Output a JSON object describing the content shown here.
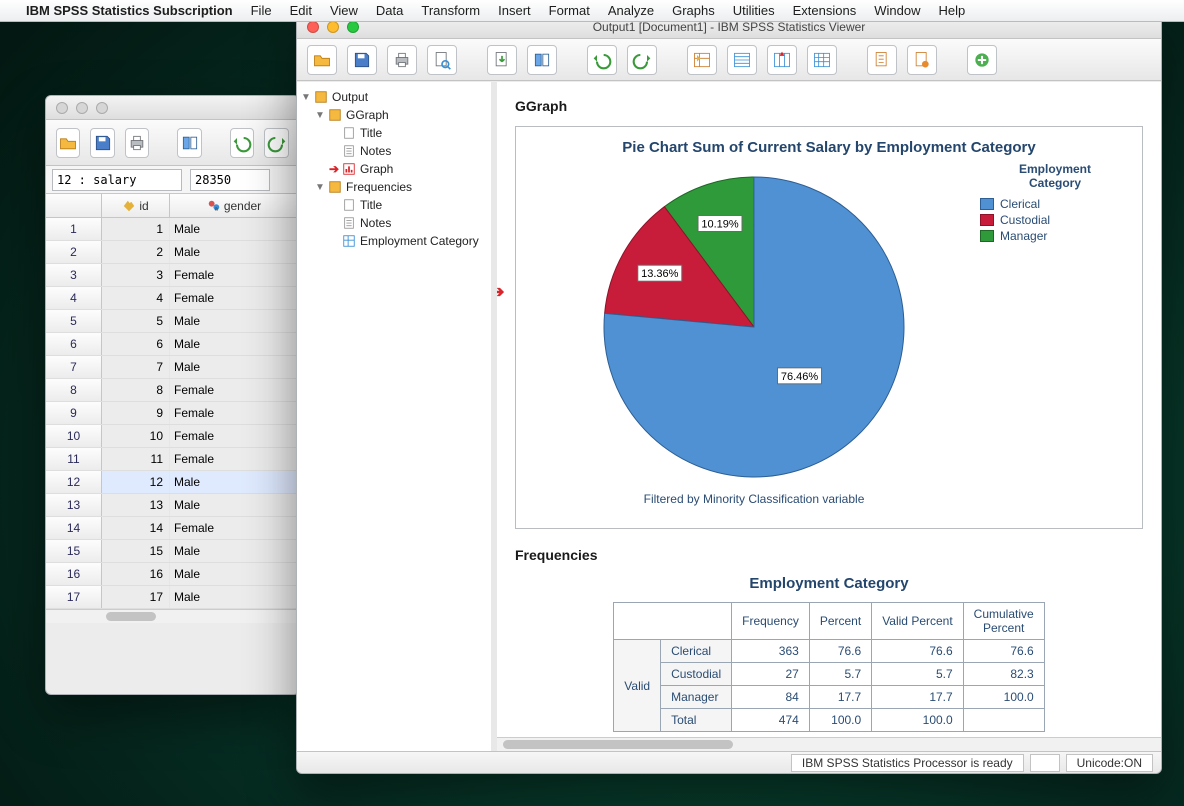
{
  "menubar": {
    "app": "IBM SPSS Statistics Subscription",
    "items": [
      "File",
      "Edit",
      "View",
      "Data",
      "Transform",
      "Insert",
      "Format",
      "Analyze",
      "Graphs",
      "Utilities",
      "Extensions",
      "Window",
      "Help"
    ]
  },
  "data_window": {
    "cell_name": "12 : salary",
    "cell_value": "28350",
    "columns": {
      "id": "id",
      "gender": "gender"
    },
    "rows": [
      {
        "n": "1",
        "id": "1",
        "g": "Male"
      },
      {
        "n": "2",
        "id": "2",
        "g": "Male"
      },
      {
        "n": "3",
        "id": "3",
        "g": "Female"
      },
      {
        "n": "4",
        "id": "4",
        "g": "Female"
      },
      {
        "n": "5",
        "id": "5",
        "g": "Male"
      },
      {
        "n": "6",
        "id": "6",
        "g": "Male"
      },
      {
        "n": "7",
        "id": "7",
        "g": "Male"
      },
      {
        "n": "8",
        "id": "8",
        "g": "Female"
      },
      {
        "n": "9",
        "id": "9",
        "g": "Female"
      },
      {
        "n": "10",
        "id": "10",
        "g": "Female"
      },
      {
        "n": "11",
        "id": "11",
        "g": "Female"
      },
      {
        "n": "12",
        "id": "12",
        "g": "Male"
      },
      {
        "n": "13",
        "id": "13",
        "g": "Male"
      },
      {
        "n": "14",
        "id": "14",
        "g": "Female"
      },
      {
        "n": "15",
        "id": "15",
        "g": "Male"
      },
      {
        "n": "16",
        "id": "16",
        "g": "Male"
      },
      {
        "n": "17",
        "id": "17",
        "g": "Male"
      }
    ],
    "selected_row": 12
  },
  "output_window": {
    "title": "Output1 [Document1] - IBM SPSS Statistics Viewer",
    "nav": {
      "output": "Output",
      "ggraph": "GGraph",
      "title": "Title",
      "notes": "Notes",
      "graph": "Graph",
      "frequencies": "Frequencies",
      "emp_cat": "Employment Category"
    },
    "section_ggraph": "GGraph",
    "chart": {
      "type": "pie",
      "title": "Pie Chart Sum of Current Salary by Employment Category",
      "title_fontsize": 15,
      "title_color": "#24466d",
      "background_color": "#ffffff",
      "border_color": "#b9bdc1",
      "legend_title_line1": "Employment",
      "legend_title_line2": "Category",
      "series": [
        {
          "label": "Clerical",
          "pct": 76.46,
          "color": "#4f91d2",
          "border": "#2d5e94"
        },
        {
          "label": "Custodial",
          "pct": 13.36,
          "color": "#c71d3b",
          "border": "#8e1329"
        },
        {
          "label": "Manager",
          "pct": 10.19,
          "color": "#2f9a3a",
          "border": "#1e6726"
        }
      ],
      "slice_labels": [
        "76.46%",
        "13.36%",
        "10.19%"
      ],
      "caption": "Filtered by Minority Classification variable",
      "radius": 150,
      "start_angle_deg": -90
    },
    "section_freq": "Frequencies",
    "freq_table": {
      "title": "Employment Category",
      "columns": [
        "Frequency",
        "Percent",
        "Valid Percent",
        "Cumulative Percent"
      ],
      "col_cum_l1": "Cumulative",
      "col_cum_l2": "Percent",
      "group_label": "Valid",
      "rows": [
        {
          "label": "Clerical",
          "f": "363",
          "p": "76.6",
          "vp": "76.6",
          "cp": "76.6"
        },
        {
          "label": "Custodial",
          "f": "27",
          "p": "5.7",
          "vp": "5.7",
          "cp": "82.3"
        },
        {
          "label": "Manager",
          "f": "84",
          "p": "17.7",
          "vp": "17.7",
          "cp": "100.0"
        },
        {
          "label": "Total",
          "f": "474",
          "p": "100.0",
          "vp": "100.0",
          "cp": ""
        }
      ],
      "header_color": "#2a4c73",
      "border_color": "#9aa6b3"
    },
    "status": {
      "msg": "IBM SPSS Statistics Processor is ready",
      "unicode": "Unicode:ON"
    }
  }
}
